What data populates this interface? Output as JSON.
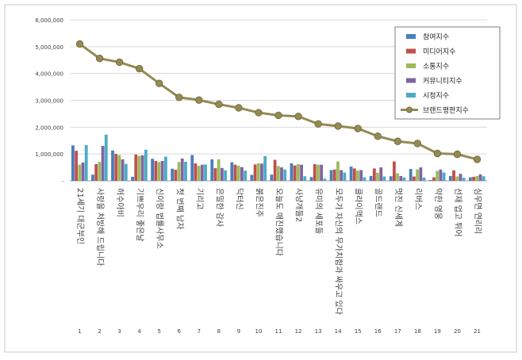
{
  "chart_data": {
    "type": "bar",
    "title": "",
    "xlabel": "",
    "ylabel": "",
    "ylim": [
      0,
      6000000
    ],
    "y_ticks": [
      "-",
      "1,000,000",
      "2,000,000",
      "3,000,000",
      "4,000,000",
      "5,000,000",
      "6,000,000"
    ],
    "grid": "horizontal",
    "legend_position": "top-right",
    "categories": [
      "21세기 대군부인",
      "사랑을 처방해 드립니다",
      "허수아비",
      "기쁘우리 좋은날",
      "신이랑 법률사무소",
      "첫 번째 남자",
      "기리고",
      "은밀한 감사",
      "닥터신",
      "붉은진주",
      "오늘도 매진했습니다",
      "사냥개들2",
      "유미의 세포들",
      "모두가 자신의 무가치함과 싸우고 있다",
      "클라이맥스",
      "골드랜드",
      "멋진 신세계",
      "리버스",
      "약한 영웅",
      "선재 업고 튀어",
      "심우면 연리리"
    ],
    "x_numbers": [
      "1",
      "2",
      "3",
      "4",
      "5",
      "6",
      "7",
      "8",
      "9",
      "10",
      "11",
      "12",
      "13",
      "14",
      "15",
      "16",
      "17",
      "18",
      "19",
      "20",
      "21"
    ],
    "series": [
      {
        "name": "참여지수",
        "kind": "bar",
        "color": "#4a7ebb",
        "values": [
          1320000,
          230000,
          1130000,
          150000,
          820000,
          450000,
          960000,
          800000,
          690000,
          220000,
          230000,
          650000,
          140000,
          400000,
          530000,
          180000,
          170000,
          440000,
          30000,
          180000,
          130000
        ]
      },
      {
        "name": "미디어지수",
        "kind": "bar",
        "color": "#c0504d",
        "values": [
          1120000,
          620000,
          1000000,
          980000,
          740000,
          410000,
          650000,
          470000,
          600000,
          610000,
          780000,
          570000,
          620000,
          420000,
          460000,
          460000,
          720000,
          160000,
          130000,
          390000,
          150000
        ]
      },
      {
        "name": "소통지수",
        "kind": "bar",
        "color": "#9bbb59",
        "values": [
          600000,
          700000,
          960000,
          930000,
          700000,
          700000,
          560000,
          800000,
          560000,
          650000,
          550000,
          620000,
          600000,
          720000,
          380000,
          300000,
          280000,
          420000,
          370000,
          160000,
          180000
        ]
      },
      {
        "name": "커뮤니티지수",
        "kind": "bar",
        "color": "#8064a2",
        "values": [
          680000,
          1300000,
          800000,
          950000,
          740000,
          830000,
          600000,
          480000,
          510000,
          640000,
          500000,
          600000,
          600000,
          400000,
          400000,
          500000,
          180000,
          500000,
          420000,
          260000,
          240000
        ]
      },
      {
        "name": "시청지수",
        "kind": "bar",
        "color": "#4bacc6",
        "values": [
          1330000,
          1720000,
          630000,
          1160000,
          900000,
          710000,
          610000,
          390000,
          380000,
          920000,
          420000,
          170000,
          80000,
          310000,
          130000,
          160000,
          120000,
          120000,
          310000,
          110000,
          170000
        ]
      },
      {
        "name": "브랜드평판지수",
        "kind": "line",
        "color": "#948a54",
        "values": [
          5100000,
          4560000,
          4420000,
          4180000,
          3630000,
          3110000,
          3010000,
          2850000,
          2720000,
          2540000,
          2440000,
          2400000,
          2120000,
          2040000,
          1950000,
          1660000,
          1470000,
          1390000,
          1020000,
          990000,
          800000
        ]
      }
    ]
  }
}
